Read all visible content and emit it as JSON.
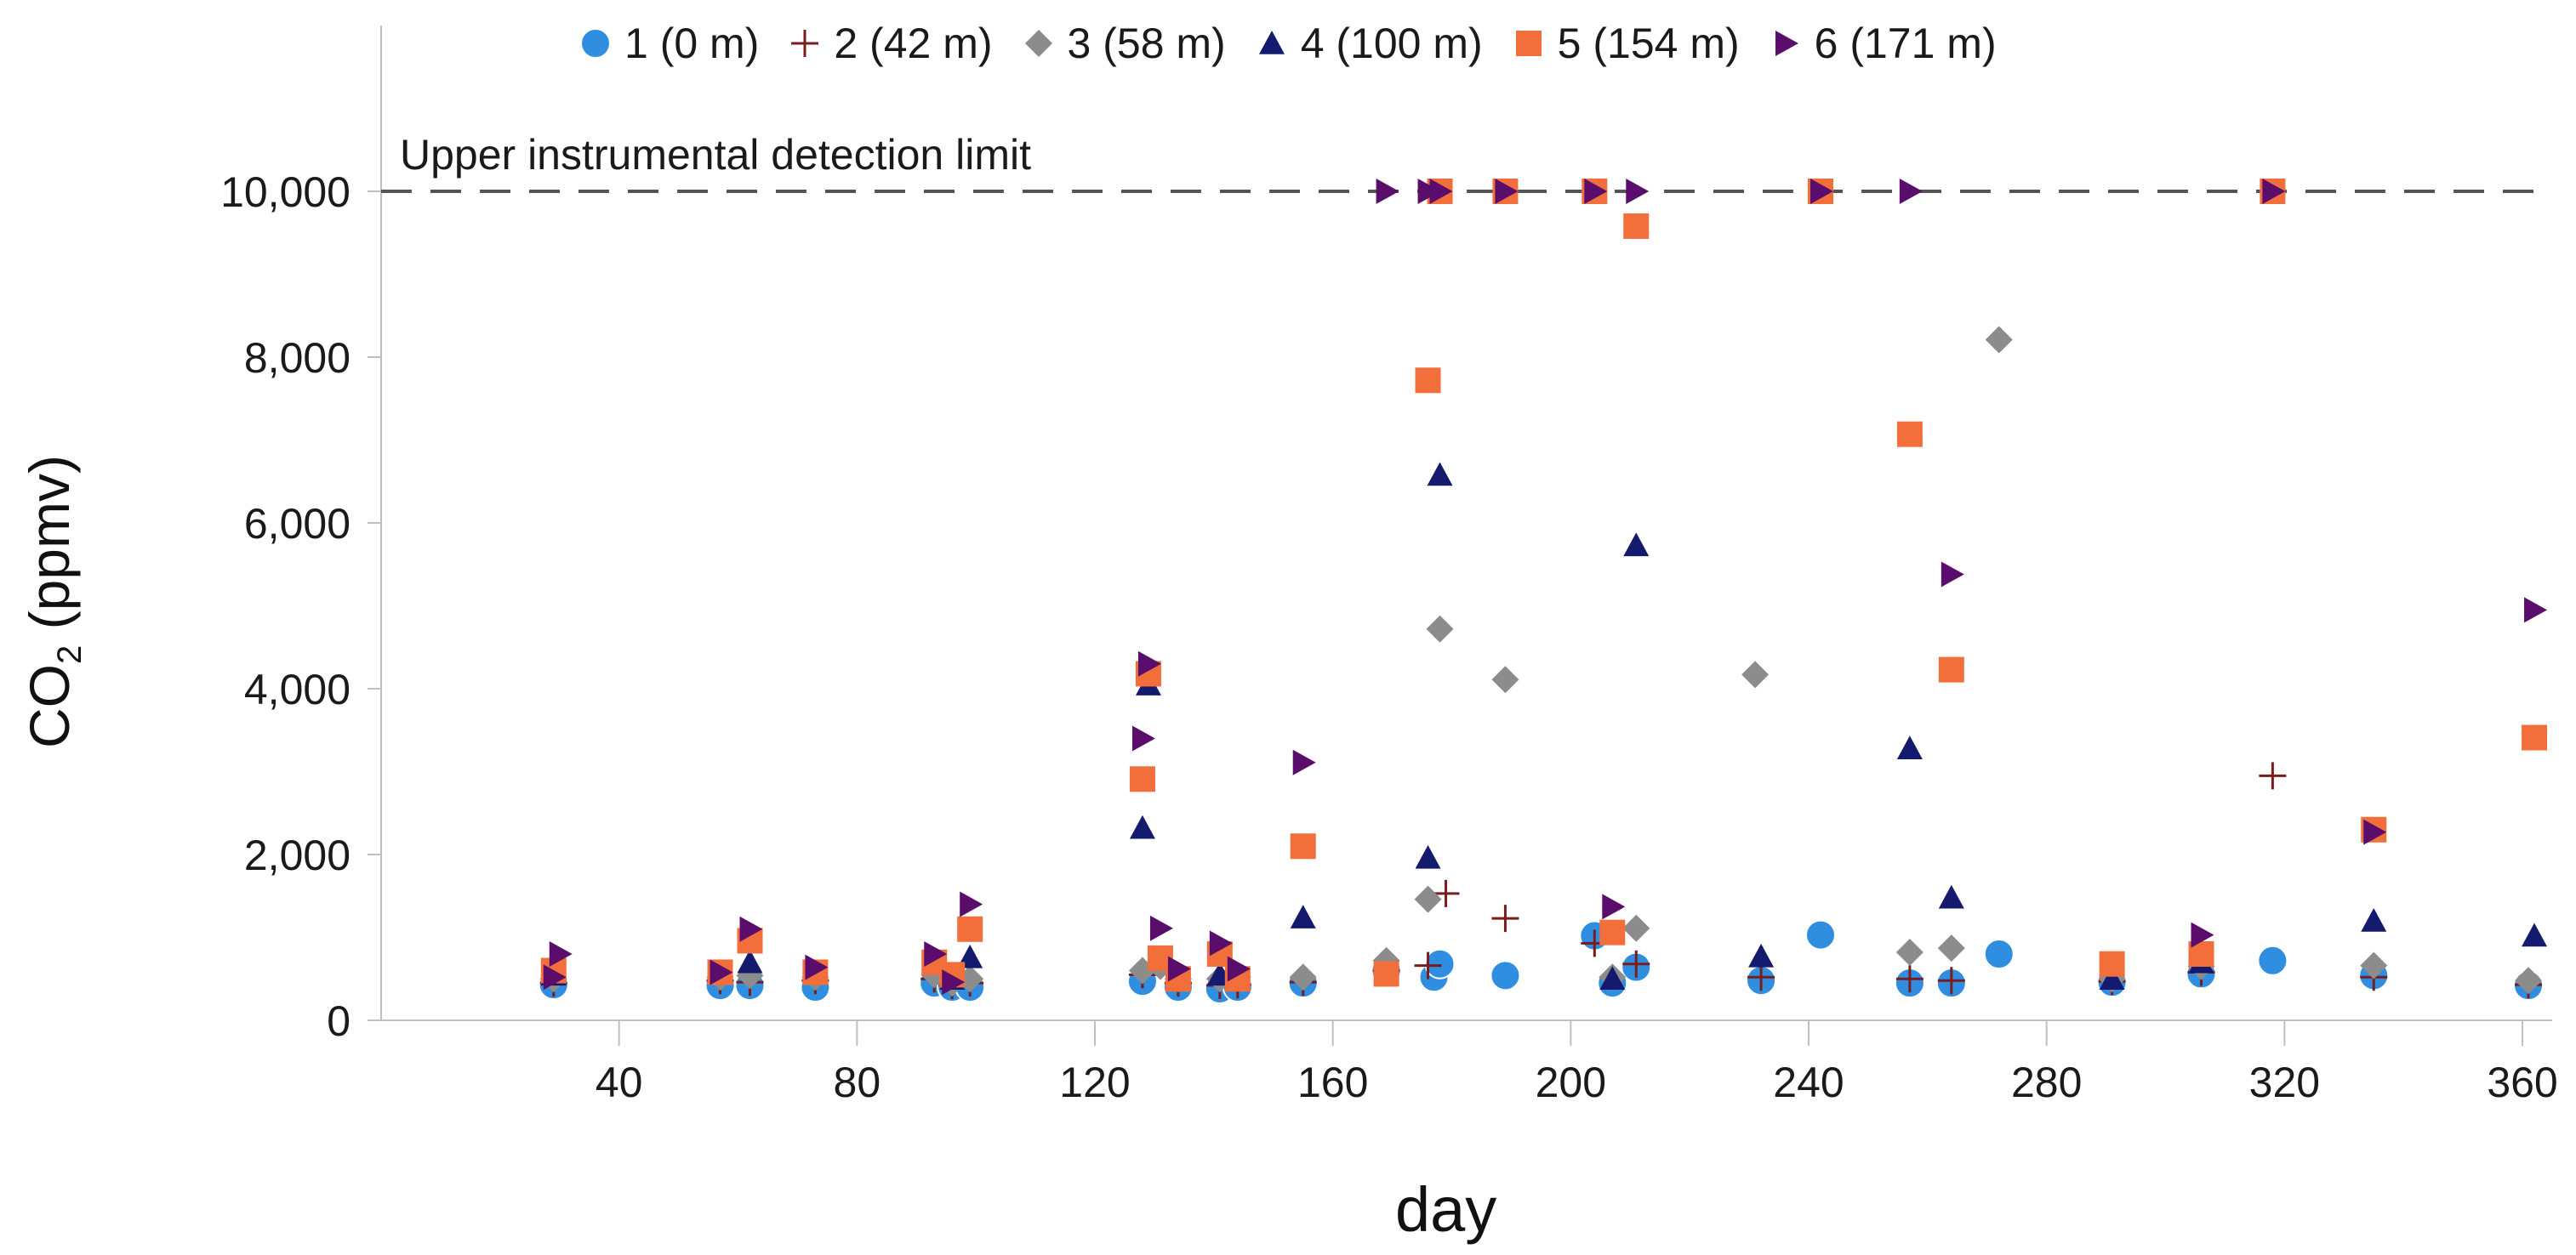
{
  "chart_data": {
    "type": "scatter",
    "xlabel": "day",
    "ylabel_main": "CO",
    "ylabel_sub": "2",
    "ylabel_unit": "(ppmv)",
    "xlim": [
      0,
      365
    ],
    "ylim": [
      0,
      12000
    ],
    "x_ticks": [
      40,
      80,
      120,
      160,
      200,
      240,
      280,
      320,
      360
    ],
    "y_ticks": [
      0,
      2000,
      4000,
      6000,
      8000,
      10000
    ],
    "y_tick_labels": [
      "0",
      "2,000",
      "4,000",
      "6,000",
      "8,000",
      "10,000"
    ],
    "reference_line": {
      "y": 10000,
      "label": "Upper instrumental detection limit"
    },
    "series": [
      {
        "name": "1 (0 m)",
        "marker": "circle",
        "color": "#2f8ee0",
        "points": [
          [
            29,
            430
          ],
          [
            57,
            420
          ],
          [
            62,
            420
          ],
          [
            73,
            400
          ],
          [
            93,
            450
          ],
          [
            96,
            400
          ],
          [
            99,
            400
          ],
          [
            128,
            470
          ],
          [
            134,
            400
          ],
          [
            141,
            380
          ],
          [
            144,
            400
          ],
          [
            155,
            450
          ],
          [
            169,
            600
          ],
          [
            177,
            520
          ],
          [
            178,
            680
          ],
          [
            189,
            540
          ],
          [
            204,
            1020
          ],
          [
            207,
            450
          ],
          [
            211,
            640
          ],
          [
            232,
            480
          ],
          [
            242,
            1030
          ],
          [
            257,
            450
          ],
          [
            264,
            450
          ],
          [
            272,
            800
          ],
          [
            291,
            460
          ],
          [
            306,
            560
          ],
          [
            318,
            720
          ],
          [
            335,
            540
          ],
          [
            361,
            420
          ]
        ]
      },
      {
        "name": "2 (42 m)",
        "marker": "plus",
        "color": "#7b1c1c",
        "points": [
          [
            29,
            450
          ],
          [
            57,
            480
          ],
          [
            62,
            460
          ],
          [
            73,
            480
          ],
          [
            93,
            500
          ],
          [
            96,
            420
          ],
          [
            99,
            450
          ],
          [
            128,
            550
          ],
          [
            134,
            450
          ],
          [
            141,
            420
          ],
          [
            144,
            430
          ],
          [
            155,
            460
          ],
          [
            169,
            600
          ],
          [
            176,
            660
          ],
          [
            179,
            1530
          ],
          [
            189,
            1230
          ],
          [
            204,
            930
          ],
          [
            211,
            680
          ],
          [
            232,
            520
          ],
          [
            257,
            500
          ],
          [
            264,
            480
          ],
          [
            291,
            470
          ],
          [
            306,
            580
          ],
          [
            318,
            2950
          ],
          [
            335,
            520
          ],
          [
            361,
            430
          ]
        ]
      },
      {
        "name": "3 (58 m)",
        "marker": "diamond",
        "color": "#8c8c8c",
        "points": [
          [
            29,
            500
          ],
          [
            57,
            520
          ],
          [
            62,
            540
          ],
          [
            73,
            520
          ],
          [
            93,
            550
          ],
          [
            96,
            450
          ],
          [
            99,
            500
          ],
          [
            128,
            600
          ],
          [
            131,
            650
          ],
          [
            134,
            500
          ],
          [
            141,
            500
          ],
          [
            144,
            520
          ],
          [
            155,
            520
          ],
          [
            169,
            720
          ],
          [
            176,
            1460
          ],
          [
            178,
            4720
          ],
          [
            189,
            4110
          ],
          [
            207,
            520
          ],
          [
            211,
            1110
          ],
          [
            231,
            4170
          ],
          [
            257,
            820
          ],
          [
            264,
            870
          ],
          [
            272,
            8210
          ],
          [
            291,
            500
          ],
          [
            306,
            650
          ],
          [
            335,
            660
          ],
          [
            361,
            480
          ]
        ]
      },
      {
        "name": "4 (100 m)",
        "marker": "triangle",
        "color": "#141b6e",
        "points": [
          [
            29,
            550
          ],
          [
            57,
            560
          ],
          [
            62,
            700
          ],
          [
            73,
            560
          ],
          [
            93,
            700
          ],
          [
            96,
            500
          ],
          [
            99,
            760
          ],
          [
            128,
            2320
          ],
          [
            129,
            4050
          ],
          [
            134,
            550
          ],
          [
            141,
            550
          ],
          [
            144,
            550
          ],
          [
            155,
            1240
          ],
          [
            176,
            1960
          ],
          [
            178,
            6580
          ],
          [
            207,
            500
          ],
          [
            211,
            5730
          ],
          [
            232,
            770
          ],
          [
            257,
            3280
          ],
          [
            264,
            1480
          ],
          [
            291,
            500
          ],
          [
            306,
            700
          ],
          [
            335,
            1200
          ],
          [
            362,
            1020
          ]
        ]
      },
      {
        "name": "5 (154 m)",
        "marker": "square",
        "color": "#f26f3c",
        "points": [
          [
            29,
            600
          ],
          [
            57,
            580
          ],
          [
            62,
            960
          ],
          [
            73,
            580
          ],
          [
            93,
            700
          ],
          [
            96,
            550
          ],
          [
            99,
            1100
          ],
          [
            128,
            2910
          ],
          [
            129,
            4180
          ],
          [
            131,
            750
          ],
          [
            134,
            500
          ],
          [
            141,
            800
          ],
          [
            144,
            500
          ],
          [
            155,
            2100
          ],
          [
            169,
            560
          ],
          [
            176,
            7720
          ],
          [
            178,
            10000
          ],
          [
            189,
            10000
          ],
          [
            204,
            10000
          ],
          [
            207,
            1060
          ],
          [
            211,
            9580
          ],
          [
            242,
            10000
          ],
          [
            257,
            7070
          ],
          [
            264,
            4230
          ],
          [
            291,
            680
          ],
          [
            306,
            800
          ],
          [
            318,
            10000
          ],
          [
            335,
            2300
          ],
          [
            362,
            3410
          ]
        ]
      },
      {
        "name": "6 (171 m)",
        "marker": "triangle-right",
        "color": "#5b0d6b",
        "points": [
          [
            29,
            520
          ],
          [
            30,
            800
          ],
          [
            57,
            580
          ],
          [
            62,
            1100
          ],
          [
            73,
            640
          ],
          [
            93,
            800
          ],
          [
            96,
            460
          ],
          [
            99,
            1400
          ],
          [
            128,
            3400
          ],
          [
            129,
            4300
          ],
          [
            131,
            1110
          ],
          [
            134,
            620
          ],
          [
            141,
            930
          ],
          [
            144,
            620
          ],
          [
            155,
            3110
          ],
          [
            169,
            10000
          ],
          [
            176,
            10000
          ],
          [
            178,
            10000
          ],
          [
            189,
            10000
          ],
          [
            204,
            10000
          ],
          [
            207,
            1370
          ],
          [
            211,
            10000
          ],
          [
            242,
            10000
          ],
          [
            257,
            10000
          ],
          [
            264,
            5380
          ],
          [
            306,
            1030
          ],
          [
            318,
            10000
          ],
          [
            335,
            2270
          ],
          [
            362,
            4950
          ]
        ]
      }
    ]
  }
}
